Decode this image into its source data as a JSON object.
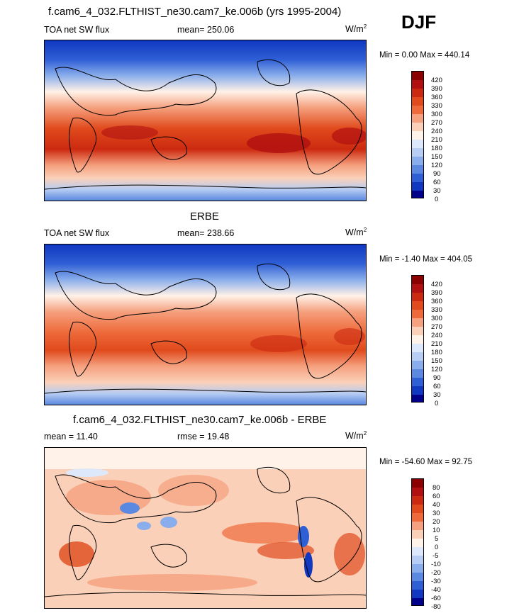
{
  "season": "DJF",
  "panels": [
    {
      "title": "f.cam6_4_032.FLTHIST_ne30.cam7_ke.006b (yrs 1995-2004)",
      "left_label": "TOA net SW flux",
      "center_label": "mean= 250.06",
      "units": "W/m",
      "units_sup": "2",
      "minmax": "Min =   0.00 Max = 440.14",
      "levels": [
        "420",
        "390",
        "360",
        "330",
        "300",
        "270",
        "240",
        "210",
        "180",
        "150",
        "120",
        "90",
        "60",
        "30",
        "0"
      ],
      "colors": [
        "#8b0000",
        "#b01010",
        "#cc2a10",
        "#e04a1c",
        "#ee6a3a",
        "#f5a07e",
        "#fbd0b8",
        "#fff2e8",
        "#dde8fa",
        "#b7cdf3",
        "#8aaeeb",
        "#5b88e0",
        "#2f5fd5",
        "#1038c0",
        "#00008b"
      ]
    },
    {
      "title": "ERBE",
      "left_label": "TOA net SW flux",
      "center_label": "mean= 238.66",
      "units": "W/m",
      "units_sup": "2",
      "minmax": "Min =  -1.40 Max = 404.05",
      "levels": [
        "420",
        "390",
        "360",
        "330",
        "300",
        "270",
        "240",
        "210",
        "180",
        "150",
        "120",
        "90",
        "60",
        "30",
        "0"
      ],
      "colors": [
        "#8b0000",
        "#b01010",
        "#cc2a10",
        "#e04a1c",
        "#ee6a3a",
        "#f5a07e",
        "#fbd0b8",
        "#fff2e8",
        "#dde8fa",
        "#b7cdf3",
        "#8aaeeb",
        "#5b88e0",
        "#2f5fd5",
        "#1038c0",
        "#00008b"
      ]
    },
    {
      "title": "f.cam6_4_032.FLTHIST_ne30.cam7_ke.006b - ERBE",
      "left_label": "mean =  11.40",
      "center_label": "rmse =  19.48",
      "units": "W/m",
      "units_sup": "2",
      "minmax": "Min = -54.60 Max =  92.75",
      "levels": [
        "80",
        "60",
        "40",
        "30",
        "20",
        "10",
        "5",
        "0",
        "-5",
        "-10",
        "-20",
        "-30",
        "-40",
        "-60",
        "-80"
      ],
      "colors": [
        "#8b0000",
        "#b01010",
        "#cc2a10",
        "#e04a1c",
        "#ee6a3a",
        "#f5a07e",
        "#fbd0b8",
        "#fff2e8",
        "#dde8fa",
        "#b7cdf3",
        "#8aaeeb",
        "#5b88e0",
        "#2f5fd5",
        "#1038c0",
        "#00008b"
      ]
    }
  ],
  "chart_data": [
    {
      "type": "heatmap",
      "title": "f.cam6_4_032.FLTHIST_ne30.cam7_ke.006b (yrs 1995-2004)",
      "variable": "TOA net SW flux",
      "mean": 250.06,
      "min": 0.0,
      "max": 440.14,
      "units": "W/m2",
      "levels": [
        0,
        30,
        60,
        90,
        120,
        150,
        180,
        210,
        240,
        270,
        300,
        330,
        360,
        390,
        420
      ]
    },
    {
      "type": "heatmap",
      "title": "ERBE",
      "variable": "TOA net SW flux",
      "mean": 238.66,
      "min": -1.4,
      "max": 404.05,
      "units": "W/m2",
      "levels": [
        0,
        30,
        60,
        90,
        120,
        150,
        180,
        210,
        240,
        270,
        300,
        330,
        360,
        390,
        420
      ]
    },
    {
      "type": "heatmap",
      "title": "f.cam6_4_032.FLTHIST_ne30.cam7_ke.006b - ERBE",
      "mean": 11.4,
      "rmse": 19.48,
      "min": -54.6,
      "max": 92.75,
      "units": "W/m2",
      "levels": [
        -80,
        -60,
        -40,
        -30,
        -20,
        -10,
        -5,
        0,
        5,
        10,
        20,
        30,
        40,
        60,
        80
      ]
    }
  ]
}
